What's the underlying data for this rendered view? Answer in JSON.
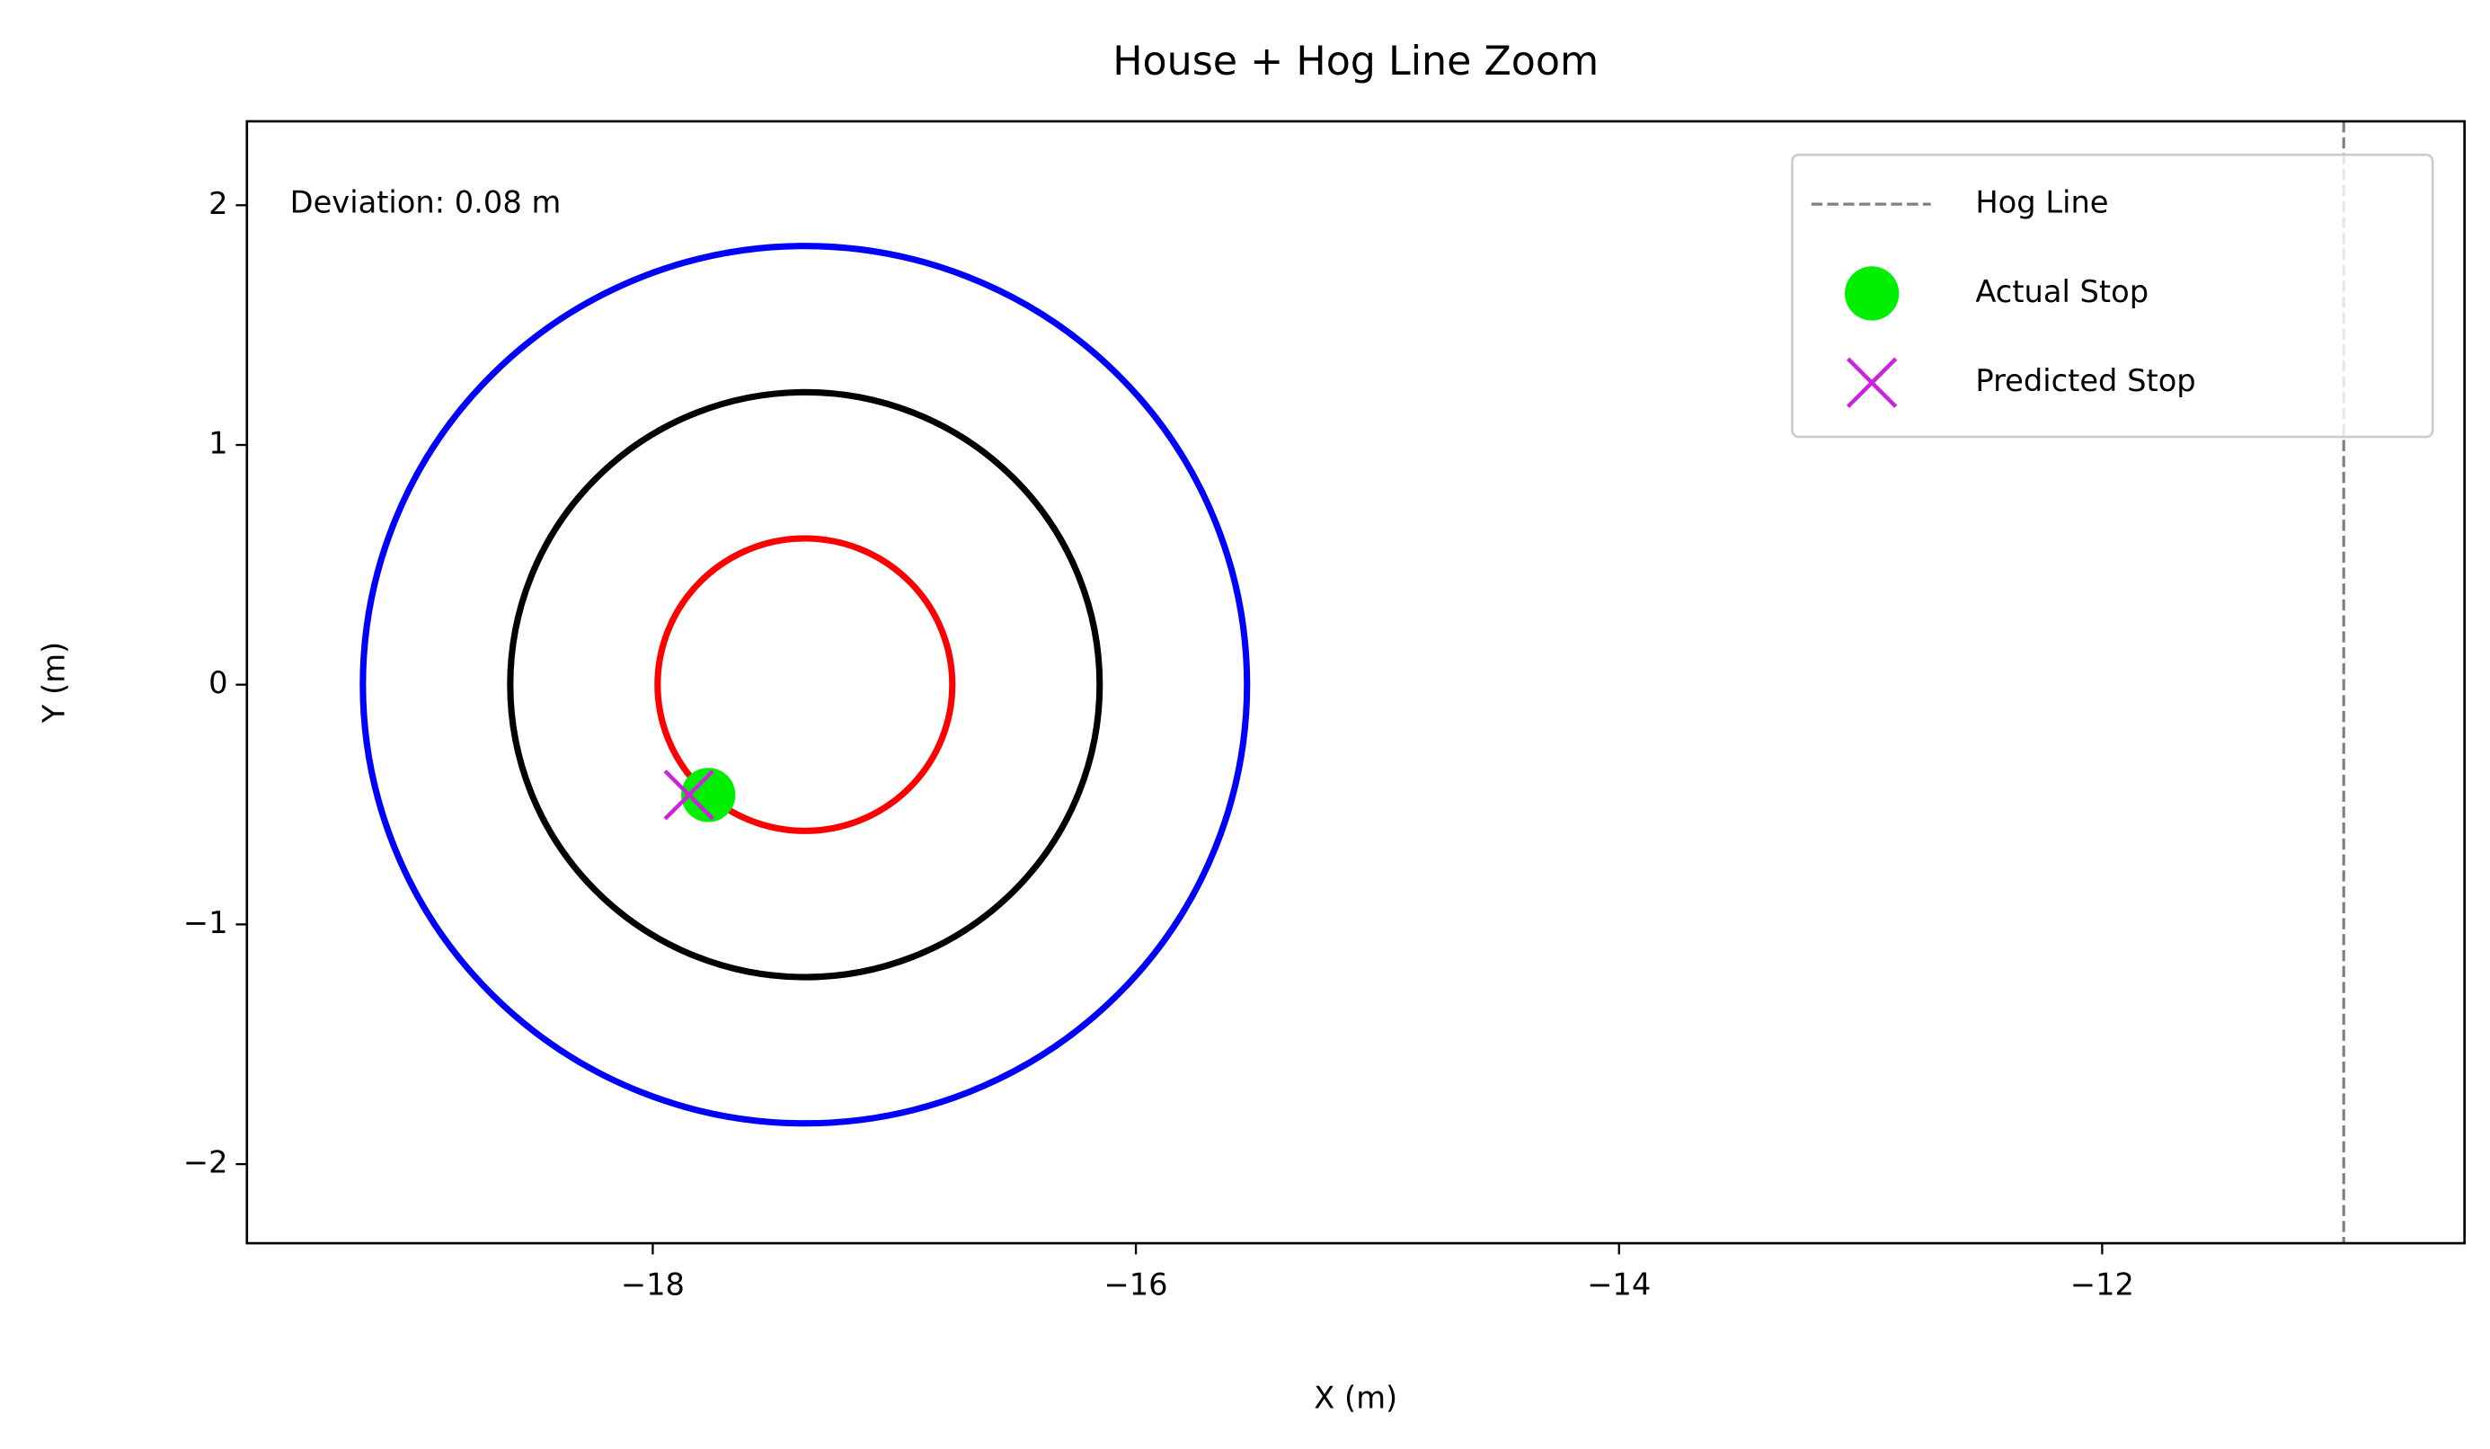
{
  "chart_data": {
    "type": "scatter",
    "title": "House + Hog Line Zoom",
    "x_label": "X (m)",
    "y_label": "Y (m)",
    "annotation": "Deviation: 0.08 m",
    "xlim": [
      -19.68,
      -10.5
    ],
    "ylim": [
      -2.33,
      2.35
    ],
    "xticks": [
      {
        "value": -18,
        "label": "−18"
      },
      {
        "value": -16,
        "label": "−16"
      },
      {
        "value": -14,
        "label": "−14"
      },
      {
        "value": -12,
        "label": "−12"
      }
    ],
    "yticks": [
      {
        "value": -2,
        "label": "−2"
      },
      {
        "value": -1,
        "label": "−1"
      },
      0,
      1,
      2
    ],
    "grid": false,
    "legend": "upper right",
    "house": {
      "center": [
        -17.37,
        0
      ],
      "radii": [
        1.83,
        1.22,
        0.61
      ],
      "colors": [
        "#0000ff",
        "#000000",
        "#ff0000"
      ]
    },
    "hog_line": {
      "name": "Hog Line",
      "color": "#808080",
      "x": -11
    },
    "series": [
      {
        "name": "Actual Stop",
        "color": "#00ee00",
        "marker": "circle",
        "x": [
          -17.77
        ],
        "y": [
          -0.46
        ]
      },
      {
        "name": "Predicted Stop",
        "color": "#cc22dd",
        "marker": "x",
        "x": [
          -17.85
        ],
        "y": [
          -0.46
        ]
      }
    ]
  }
}
